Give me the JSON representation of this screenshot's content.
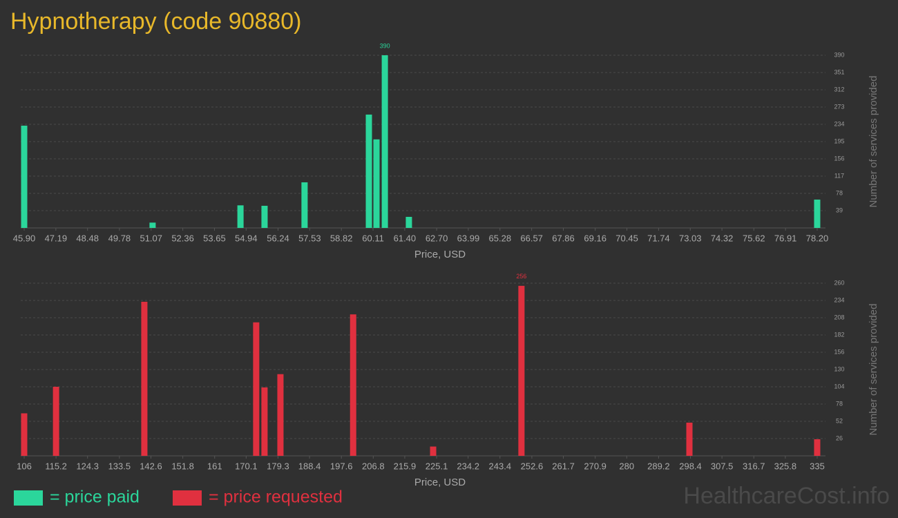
{
  "title": "Hypnotherapy (code 90880)",
  "watermark": "HealthcareCost.info",
  "chart_data": [
    {
      "type": "bar",
      "xlabel": "Price, USD",
      "ylabel": "Number of services provided",
      "x": [
        45.9,
        51.13,
        54.71,
        55.69,
        57.32,
        59.94,
        60.25,
        60.59,
        61.57,
        78.2
      ],
      "series": [
        {
          "name": "= price paid",
          "color": "#2bd69b",
          "values": [
            231,
            12,
            51,
            50,
            103,
            256,
            200,
            390,
            25,
            64
          ]
        }
      ],
      "xlim": [
        45.9,
        78.2
      ],
      "xticks": [
        {
          "value": 45.9,
          "label": "45.90"
        },
        47.19,
        48.48,
        49.78,
        51.07,
        52.36,
        53.65,
        54.94,
        56.24,
        57.53,
        58.82,
        60.11,
        {
          "value": 61.4,
          "label": "61.40"
        },
        {
          "value": 62.7,
          "label": "62.70"
        },
        63.99,
        65.28,
        66.57,
        67.86,
        69.16,
        70.45,
        71.74,
        73.03,
        74.32,
        75.62,
        76.91,
        {
          "value": 78.2,
          "label": "78.20"
        }
      ],
      "ylim": [
        0,
        390
      ],
      "yticks": [
        39,
        78,
        117,
        156,
        195,
        234,
        273,
        312,
        351,
        390
      ],
      "grid": true
    },
    {
      "type": "bar",
      "xlabel": "Price, USD",
      "ylabel": "Number of services provided",
      "x": [
        106,
        115.2,
        140.7,
        173.0,
        175.4,
        180.0,
        201.0,
        224.1,
        249.6,
        298.1,
        335
      ],
      "series": [
        {
          "name": "= price requested",
          "color": "#e0303f",
          "values": [
            64,
            104,
            232,
            201,
            103,
            123,
            213,
            14,
            256,
            50,
            25
          ]
        }
      ],
      "xlim": [
        106,
        335
      ],
      "xticks": [
        106,
        115.2,
        124.3,
        133.5,
        142.6,
        151.8,
        161,
        170.1,
        179.3,
        188.4,
        197.6,
        206.8,
        215.9,
        225.1,
        234.2,
        243.4,
        252.6,
        261.7,
        270.9,
        280,
        289.2,
        298.4,
        307.5,
        316.7,
        325.8,
        335
      ],
      "ylim": [
        0,
        260
      ],
      "yticks": [
        26,
        52,
        78,
        104,
        130,
        156,
        182,
        208,
        234,
        260
      ],
      "grid": true
    }
  ]
}
